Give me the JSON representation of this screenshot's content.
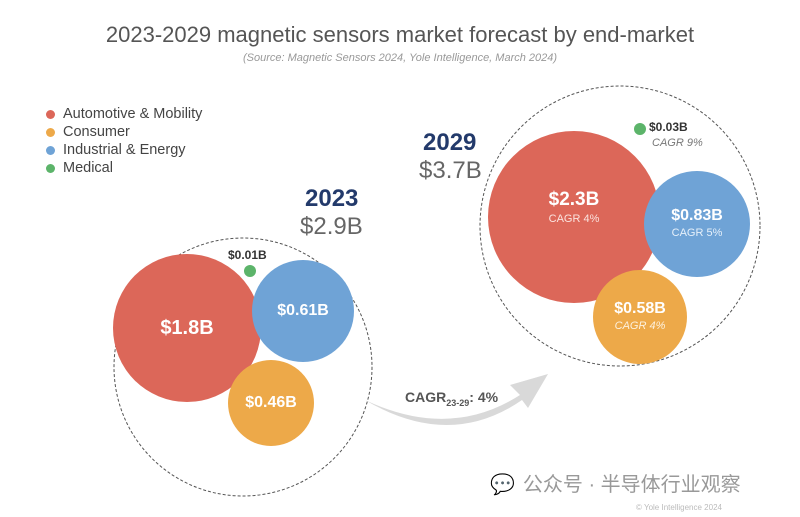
{
  "title": "2023-2029 magnetic sensors market forecast by end-market",
  "source": "(Source: Magnetic Sensors 2024, Yole Intelligence, March 2024)",
  "legend": [
    {
      "label": "Automotive & Mobility",
      "color": "#dc6759"
    },
    {
      "label": "Consumer",
      "color": "#eda949"
    },
    {
      "label": "Industrial & Energy",
      "color": "#6fa3d6"
    },
    {
      "label": "Medical",
      "color": "#5cb46a"
    }
  ],
  "y2023": {
    "year": "2023",
    "total": "$2.9B",
    "automotive": "$1.8B",
    "consumer": "$0.46B",
    "industrial": "$0.61B",
    "medical": "$0.01B"
  },
  "y2029": {
    "year": "2029",
    "total": "$3.7B",
    "automotive": "$2.3B",
    "automotive_cagr": "CAGR 4%",
    "consumer": "$0.58B",
    "consumer_cagr": "CAGR 4%",
    "industrial": "$0.83B",
    "industrial_cagr": "CAGR 5%",
    "medical": "$0.03B",
    "medical_cagr": "CAGR 9%"
  },
  "arrow": {
    "label": "CAGR",
    "sub": "23-29",
    "value": ": 4%"
  },
  "watermark": "公众号 · 半导体行业观察",
  "copyright": "© Yole Intelligence 2024"
}
